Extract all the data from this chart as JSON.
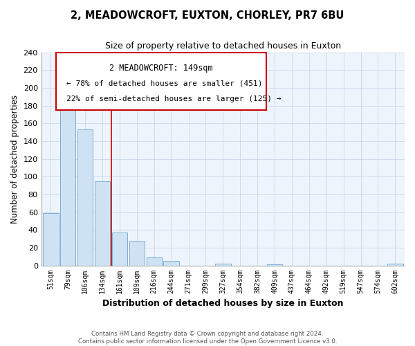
{
  "title": "2, MEADOWCROFT, EUXTON, CHORLEY, PR7 6BU",
  "subtitle": "Size of property relative to detached houses in Euxton",
  "xlabel": "Distribution of detached houses by size in Euxton",
  "ylabel": "Number of detached properties",
  "bar_color": "#cfe2f3",
  "bar_edge_color": "#7bafd4",
  "plot_bg_color": "#eef4fb",
  "bin_labels": [
    "51sqm",
    "79sqm",
    "106sqm",
    "134sqm",
    "161sqm",
    "189sqm",
    "216sqm",
    "244sqm",
    "271sqm",
    "299sqm",
    "327sqm",
    "354sqm",
    "382sqm",
    "409sqm",
    "437sqm",
    "464sqm",
    "492sqm",
    "519sqm",
    "547sqm",
    "574sqm",
    "602sqm"
  ],
  "bar_heights": [
    59,
    186,
    153,
    95,
    37,
    28,
    9,
    5,
    0,
    0,
    2,
    0,
    0,
    1,
    0,
    0,
    0,
    0,
    0,
    0,
    2
  ],
  "vline_x_index": 3.5,
  "vline_color": "#cc0000",
  "ylim": [
    0,
    240
  ],
  "yticks": [
    0,
    20,
    40,
    60,
    80,
    100,
    120,
    140,
    160,
    180,
    200,
    220,
    240
  ],
  "annotation_title": "2 MEADOWCROFT: 149sqm",
  "annotation_line1": "← 78% of detached houses are smaller (451)",
  "annotation_line2": "22% of semi-detached houses are larger (125) →",
  "footer_line1": "Contains HM Land Registry data © Crown copyright and database right 2024.",
  "footer_line2": "Contains public sector information licensed under the Open Government Licence v3.0.",
  "background_color": "#ffffff",
  "grid_color": "#c8d8e8"
}
